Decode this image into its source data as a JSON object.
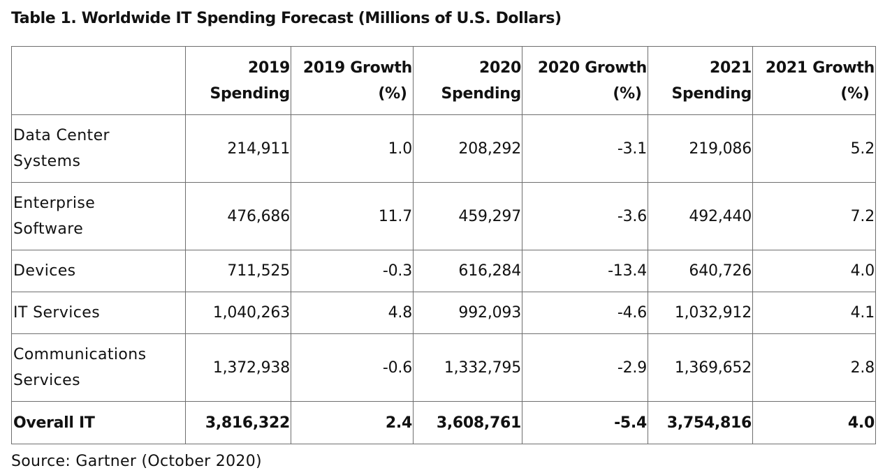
{
  "title": "Table 1. Worldwide IT Spending Forecast (Millions of U.S. Dollars)",
  "columns": [
    {
      "line1": "2019",
      "line2": "Spending"
    },
    {
      "line1": "2019 Growth",
      "line2": "(%)"
    },
    {
      "line1": "2020",
      "line2": "Spending"
    },
    {
      "line1": "2020 Growth",
      "line2": "(%)"
    },
    {
      "line1": "2021",
      "line2": "Spending"
    },
    {
      "line1": "2021 Growth",
      "line2": "(%)"
    }
  ],
  "rows": [
    {
      "label_line1": "Data Center",
      "label_line2": "Systems",
      "values": [
        "214,911",
        "1.0",
        "208,292",
        "-3.1",
        "219,086",
        "5.2"
      ]
    },
    {
      "label_line1": "Enterprise",
      "label_line2": "Software",
      "values": [
        "476,686",
        "11.7",
        "459,297",
        "-3.6",
        "492,440",
        "7.2"
      ]
    },
    {
      "label_line1": "Devices",
      "label_line2": "",
      "values": [
        "711,525",
        "-0.3",
        "616,284",
        "-13.4",
        "640,726",
        "4.0"
      ]
    },
    {
      "label_line1": "IT Services",
      "label_line2": "",
      "values": [
        "1,040,263",
        "4.8",
        "992,093",
        "-4.6",
        "1,032,912",
        "4.1"
      ]
    },
    {
      "label_line1": "Communications",
      "label_line2": "Services",
      "values": [
        "1,372,938",
        "-0.6",
        "1,332,795",
        "-2.9",
        "1,369,652",
        "2.8"
      ]
    }
  ],
  "total": {
    "label": "Overall IT",
    "values": [
      "3,816,322",
      "2.4",
      "3,608,761",
      "-5.4",
      "3,754,816",
      "4.0"
    ]
  },
  "source": "Source: Gartner (October 2020)"
}
